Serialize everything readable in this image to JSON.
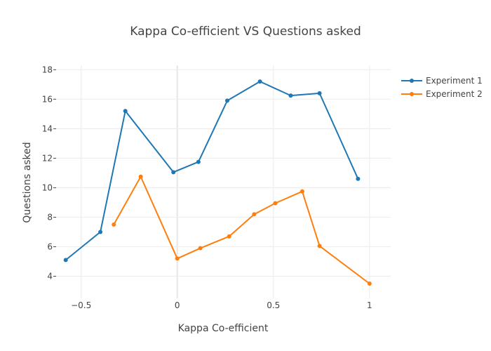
{
  "chart_data": {
    "type": "line",
    "title": "Kappa Co-efficient VS Questions asked",
    "xlabel": "Kappa Co-efficient",
    "ylabel": "Questions asked",
    "xlim": [
      -0.63,
      1.11
    ],
    "ylim": [
      2.5,
      18.3
    ],
    "xticks": [
      -0.5,
      0,
      0.5,
      1
    ],
    "xtick_labels": [
      "−0.5",
      "0",
      "0.5",
      "1"
    ],
    "yticks": [
      4,
      6,
      8,
      10,
      12,
      14,
      16,
      18
    ],
    "ytick_labels": [
      "4",
      "6",
      "8",
      "10",
      "12",
      "14",
      "16",
      "18"
    ],
    "grid": true,
    "legend_position": "top-right",
    "series": [
      {
        "name": "Experiment 1",
        "color": "#1f77b4",
        "x": [
          -0.58,
          -0.4,
          -0.27,
          -0.02,
          0.11,
          0.26,
          0.43,
          0.59,
          0.74,
          0.94
        ],
        "y": [
          5.1,
          7.0,
          15.2,
          11.05,
          11.75,
          15.9,
          17.2,
          16.25,
          16.4,
          10.6
        ]
      },
      {
        "name": "Experiment 2",
        "color": "#ff7f0e",
        "x": [
          -0.33,
          -0.19,
          0.0,
          0.12,
          0.27,
          0.4,
          0.51,
          0.65,
          0.74,
          1.0
        ],
        "y": [
          7.5,
          10.75,
          5.2,
          5.9,
          6.7,
          8.2,
          8.95,
          9.75,
          6.05,
          3.5
        ]
      }
    ]
  }
}
